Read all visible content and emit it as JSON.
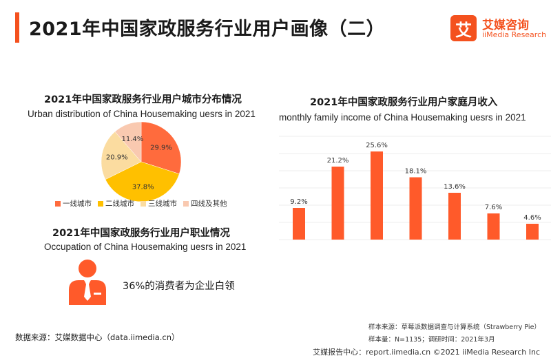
{
  "header": {
    "title": "2021年中国家政服务行业用户画像（二）",
    "brand_mark": "艾",
    "brand_cn": "艾媒咨询",
    "brand_en": "iiMedia Research"
  },
  "pie_section": {
    "title_cn": "2021年中国家政服务行业用户城市分布情况",
    "title_en": "Urban distribution of  China Housemaking uesrs  in 2021"
  },
  "bar_section": {
    "title_cn": "2021年中国家政服务行业用户家庭月收入",
    "title_en": "monthly family income of  China Housemaking uesrs  in 2021"
  },
  "occupation_section": {
    "title_cn": "2021年中国家政服务行业用户职业情况",
    "title_en": "Occupation of  China Housemaking uesrs  in 2021",
    "text": "36%的消费者为企业白领",
    "icon": "person-icon"
  },
  "source": {
    "left": "数据来源：艾媒数据中心（data.iimedia.cn）",
    "sample_source": "样本来源：草莓派数据调查与计算系统（Strawberry Pie）",
    "sample_info": "样本量：N=1135；调研时间：2021年3月"
  },
  "footer": {
    "text": "艾媒报告中心：report.iimedia.cn  ©2021  iiMedia Research  Inc"
  },
  "colors": {
    "accent": "#f4511e",
    "pie": [
      "#ff6b3d",
      "#ffc000",
      "#fbdca0",
      "#f9c9b0"
    ],
    "bar": "#ff5a2a"
  },
  "chart_data": [
    {
      "type": "pie",
      "title": "2021年中国家政服务行业用户城市分布情况",
      "categories": [
        "一线城市",
        "二线城市",
        "三线城市",
        "四线及其他"
      ],
      "values": [
        29.9,
        37.8,
        20.9,
        11.4
      ],
      "labels": [
        "29.9%",
        "37.8%",
        "20.9%",
        "11.4%"
      ],
      "legend_position": "bottom"
    },
    {
      "type": "bar",
      "title": "2021年中国家政服务行业用户家庭月收入",
      "values": [
        9.2,
        21.2,
        25.6,
        18.1,
        13.6,
        7.6,
        4.6
      ],
      "labels": [
        "9.2%",
        "21.2%",
        "25.6%",
        "18.1%",
        "13.6%",
        "7.6%",
        "4.6%"
      ],
      "grid": true
    }
  ]
}
